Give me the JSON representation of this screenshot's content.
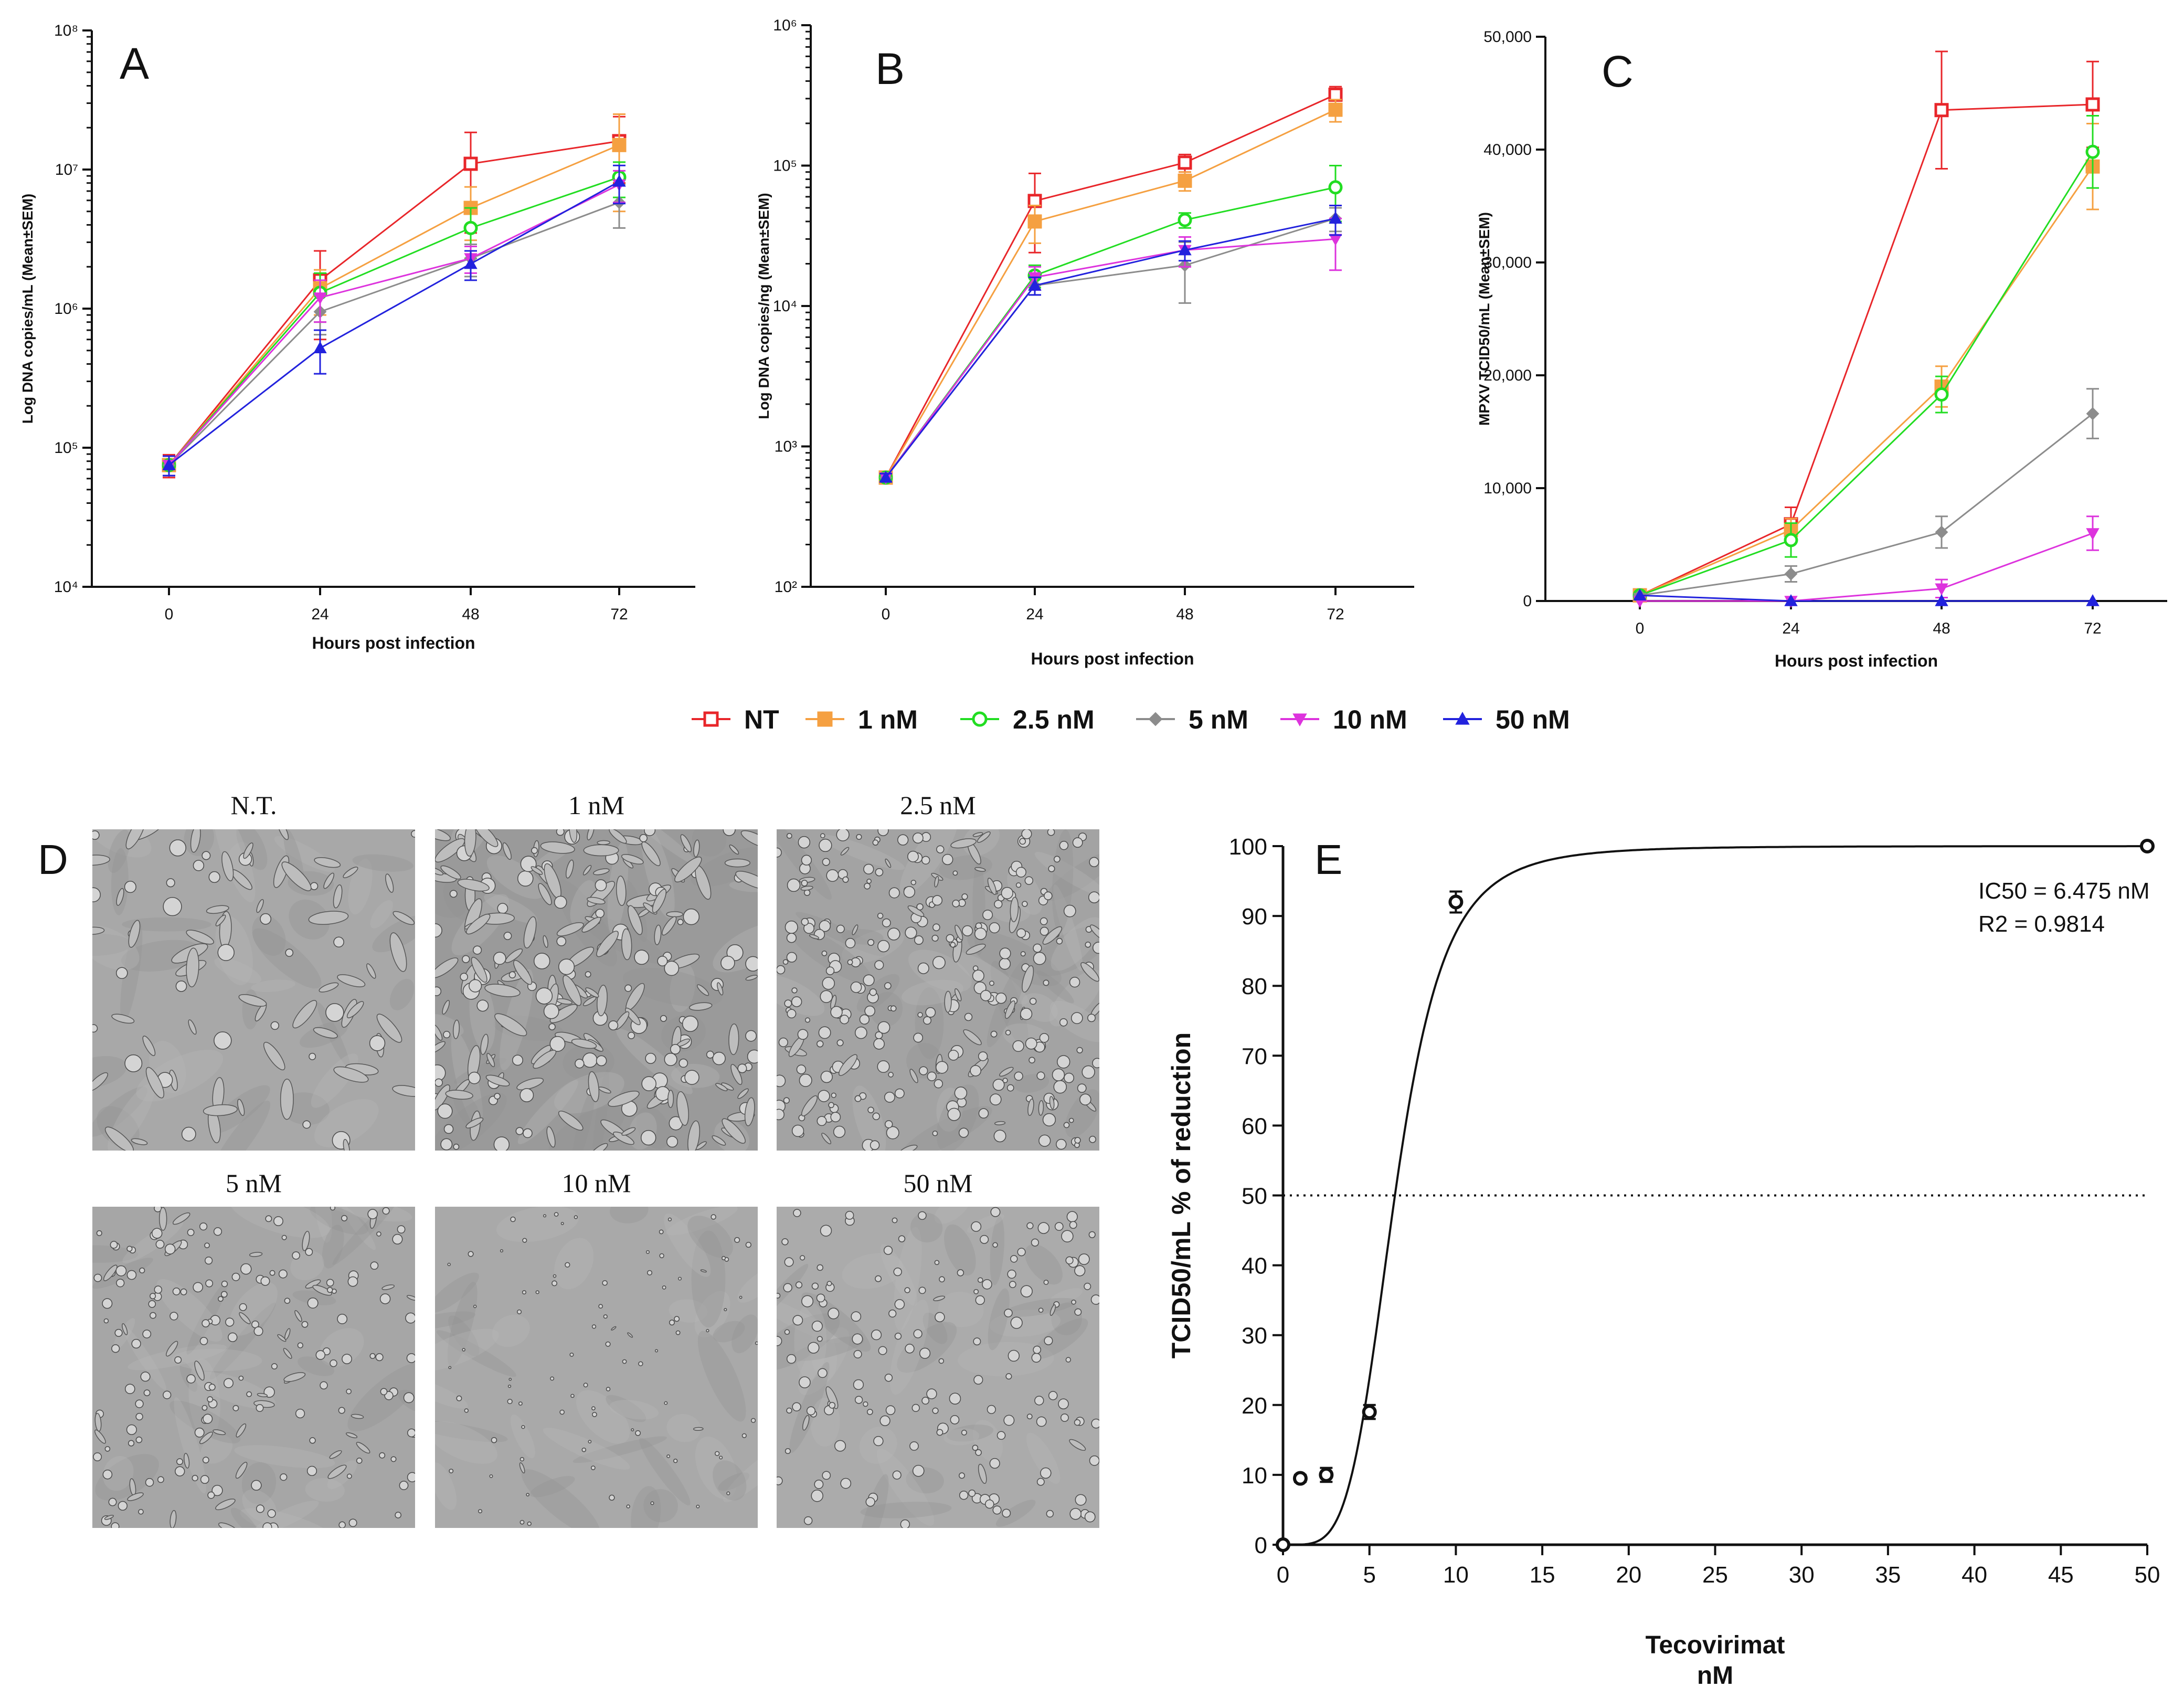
{
  "legend": {
    "items": [
      {
        "name": "NT",
        "color": "#e8262a",
        "marker": "square-open"
      },
      {
        "name": "1 nM",
        "color": "#f5a041",
        "marker": "square"
      },
      {
        "name": "2.5 nM",
        "color": "#22dd22",
        "marker": "circle-open"
      },
      {
        "name": "5 nM",
        "color": "#8c8c8c",
        "marker": "diamond"
      },
      {
        "name": "10 nM",
        "color": "#dd33dd",
        "marker": "triangle-down"
      },
      {
        "name": "50 nM",
        "color": "#2222dd",
        "marker": "triangle-up"
      }
    ]
  },
  "chart_data": [
    {
      "panel": "A",
      "type": "line",
      "xlabel": "Hours post infection",
      "ylabel": "Log DNA copies/mL (Mean±SEM)",
      "x": [
        0,
        24,
        48,
        72
      ],
      "yscale": "log",
      "ylim": [
        10000,
        100000000
      ],
      "ytick_labels": [
        "10⁴",
        "10⁵",
        "10⁶",
        "10⁷",
        "10⁸"
      ],
      "series": [
        {
          "name": "NT",
          "values": [
            75000,
            1600000,
            11000000,
            16000000
          ],
          "err": [
            14000,
            1000000,
            7500000,
            8000000
          ]
        },
        {
          "name": "1 nM",
          "values": [
            75000,
            1400000,
            5300000,
            15000000
          ],
          "err": [
            12000,
            500000,
            2200000,
            10000000
          ]
        },
        {
          "name": "2.5 nM",
          "values": [
            75000,
            1300000,
            3800000,
            8800000
          ],
          "err": [
            12000,
            500000,
            1500000,
            2500000
          ]
        },
        {
          "name": "5 nM",
          "values": [
            75000,
            950000,
            2300000,
            5800000
          ],
          "err": [
            12000,
            300000,
            600000,
            2000000
          ]
        },
        {
          "name": "10 nM",
          "values": [
            75000,
            1200000,
            2300000,
            7800000
          ],
          "err": [
            12000,
            400000,
            500000,
            2000000
          ]
        },
        {
          "name": "50 nM",
          "values": [
            75000,
            520000,
            2100000,
            8200000
          ],
          "err": [
            12000,
            180000,
            500000,
            2500000
          ]
        }
      ]
    },
    {
      "panel": "B",
      "type": "line",
      "xlabel": "Hours post infection",
      "ylabel": "Log DNA copies/ng (Mean±SEM)",
      "x": [
        0,
        24,
        48,
        72
      ],
      "yscale": "log",
      "ylim": [
        100,
        1000000
      ],
      "ytick_labels": [
        "10²",
        "10³",
        "10⁴",
        "10⁵",
        "10⁶"
      ],
      "series": [
        {
          "name": "NT",
          "values": [
            600,
            56000,
            105000,
            320000
          ],
          "err": [
            40,
            32000,
            15000,
            45000
          ]
        },
        {
          "name": "1 nM",
          "values": [
            600,
            40000,
            78000,
            250000
          ],
          "err": [
            40,
            12000,
            12000,
            45000
          ]
        },
        {
          "name": "2.5 nM",
          "values": [
            600,
            16500,
            41000,
            70000
          ],
          "err": [
            40,
            3000,
            5000,
            30000
          ]
        },
        {
          "name": "5 nM",
          "values": [
            600,
            14000,
            19500,
            42000
          ],
          "err": [
            40,
            2000,
            9000,
            8000
          ]
        },
        {
          "name": "10 nM",
          "values": [
            600,
            16000,
            25000,
            30000
          ],
          "err": [
            40,
            3000,
            6000,
            12000
          ]
        },
        {
          "name": "50 nM",
          "values": [
            600,
            14000,
            25000,
            42000
          ],
          "err": [
            40,
            2000,
            4000,
            10000
          ]
        }
      ]
    },
    {
      "panel": "C",
      "type": "line",
      "xlabel": "Hours post infection",
      "ylabel": "MPXV TCID50/mL (Mean±SEM)",
      "x": [
        0,
        24,
        48,
        72
      ],
      "yscale": "linear",
      "ylim": [
        0,
        50000
      ],
      "ytick_labels": [
        "0",
        "10,000",
        "20,000",
        "30,000",
        "40,000",
        "50,000"
      ],
      "series": [
        {
          "name": "NT",
          "values": [
            500,
            6800,
            43500,
            44000
          ],
          "err": [
            150,
            1500,
            5200,
            3800
          ]
        },
        {
          "name": "1 nM",
          "values": [
            500,
            6300,
            19000,
            38500
          ],
          "err": [
            150,
            1000,
            1800,
            3800
          ]
        },
        {
          "name": "2.5 nM",
          "values": [
            500,
            5400,
            18300,
            39800
          ],
          "err": [
            150,
            1500,
            1600,
            3200
          ]
        },
        {
          "name": "5 nM",
          "values": [
            500,
            2400,
            6100,
            16600
          ],
          "err": [
            150,
            700,
            1400,
            2200
          ]
        },
        {
          "name": "10 nM",
          "values": [
            0,
            0,
            1100,
            6000
          ],
          "err": [
            0,
            0,
            800,
            1500
          ]
        },
        {
          "name": "50 nM",
          "values": [
            500,
            0,
            0,
            0
          ],
          "err": [
            0,
            0,
            0,
            0
          ]
        }
      ]
    },
    {
      "panel": "E",
      "type": "scatter",
      "xlabel_line1": "Tecovirimat",
      "xlabel_line2": "nM",
      "ylabel": "TCID50/mL % of reduction",
      "xlim": [
        0,
        50
      ],
      "ylim": [
        0,
        100
      ],
      "xticks": [
        0,
        5,
        10,
        15,
        20,
        25,
        30,
        35,
        40,
        45,
        50
      ],
      "yticks": [
        0,
        10,
        20,
        30,
        40,
        50,
        60,
        70,
        80,
        90,
        100
      ],
      "points": [
        {
          "x": 0,
          "y": 0,
          "err": 0
        },
        {
          "x": 1,
          "y": 9.5,
          "err": 0.5
        },
        {
          "x": 2.5,
          "y": 10,
          "err": 1
        },
        {
          "x": 5,
          "y": 19,
          "err": 1
        },
        {
          "x": 10,
          "y": 92,
          "err": 1.5
        },
        {
          "x": 50,
          "y": 100,
          "err": 0
        }
      ],
      "fit": {
        "type": "sigmoid",
        "ic50": 6.475,
        "hill": 4.5
      },
      "reference_line": 50,
      "annotation_ic50": "IC50 = 6.475 nM",
      "annotation_r2": "R2 = 0.9814"
    }
  ],
  "panel_letters": {
    "A": "A",
    "B": "B",
    "C": "C",
    "D": "D",
    "E": "E"
  },
  "micrographs": [
    {
      "label": "N.T.",
      "texture": "sparse-spread"
    },
    {
      "label": "1 nM",
      "texture": "dense-spread"
    },
    {
      "label": "2.5 nM",
      "texture": "dense-round"
    },
    {
      "label": "5 nM",
      "texture": "moderate-round"
    },
    {
      "label": "10 nM",
      "texture": "smooth"
    },
    {
      "label": "50 nM",
      "texture": "scattered-round"
    }
  ]
}
